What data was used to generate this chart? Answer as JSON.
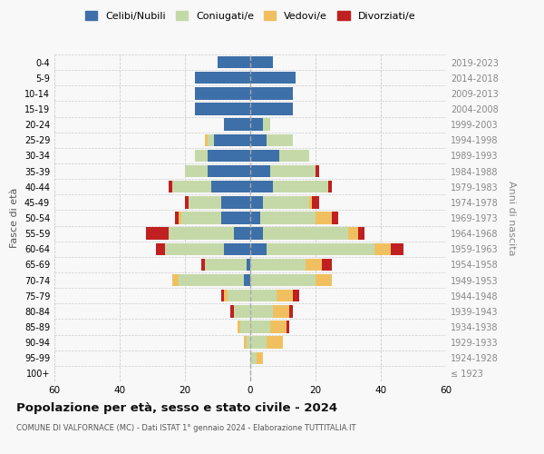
{
  "age_groups": [
    "100+",
    "95-99",
    "90-94",
    "85-89",
    "80-84",
    "75-79",
    "70-74",
    "65-69",
    "60-64",
    "55-59",
    "50-54",
    "45-49",
    "40-44",
    "35-39",
    "30-34",
    "25-29",
    "20-24",
    "15-19",
    "10-14",
    "5-9",
    "0-4"
  ],
  "birth_years": [
    "≤ 1923",
    "1924-1928",
    "1929-1933",
    "1934-1938",
    "1939-1943",
    "1944-1948",
    "1949-1953",
    "1954-1958",
    "1959-1963",
    "1964-1968",
    "1969-1973",
    "1974-1978",
    "1979-1983",
    "1984-1988",
    "1989-1993",
    "1994-1998",
    "1999-2003",
    "2004-2008",
    "2009-2013",
    "2014-2018",
    "2019-2023"
  ],
  "male_celibi": [
    0,
    0,
    0,
    0,
    0,
    0,
    2,
    1,
    8,
    5,
    9,
    9,
    12,
    13,
    13,
    11,
    8,
    17,
    17,
    17,
    10
  ],
  "male_coniugati": [
    0,
    0,
    1,
    3,
    5,
    7,
    20,
    13,
    18,
    20,
    12,
    10,
    12,
    7,
    4,
    2,
    0,
    0,
    0,
    0,
    0
  ],
  "male_vedovi": [
    0,
    0,
    1,
    1,
    0,
    1,
    2,
    0,
    0,
    0,
    1,
    0,
    0,
    0,
    0,
    1,
    0,
    0,
    0,
    0,
    0
  ],
  "male_divorziati": [
    0,
    0,
    0,
    0,
    1,
    1,
    0,
    1,
    3,
    7,
    1,
    1,
    1,
    0,
    0,
    0,
    0,
    0,
    0,
    0,
    0
  ],
  "female_nubili": [
    0,
    0,
    0,
    0,
    0,
    0,
    0,
    0,
    5,
    4,
    3,
    4,
    7,
    6,
    9,
    5,
    4,
    13,
    13,
    14,
    7
  ],
  "female_coniugate": [
    0,
    2,
    5,
    6,
    7,
    8,
    20,
    17,
    33,
    26,
    17,
    14,
    17,
    14,
    9,
    8,
    2,
    0,
    0,
    0,
    0
  ],
  "female_vedove": [
    0,
    2,
    5,
    5,
    5,
    5,
    5,
    5,
    5,
    3,
    5,
    1,
    0,
    0,
    0,
    0,
    0,
    0,
    0,
    0,
    0
  ],
  "female_divorziate": [
    0,
    0,
    0,
    1,
    1,
    2,
    0,
    3,
    4,
    2,
    2,
    2,
    1,
    1,
    0,
    0,
    0,
    0,
    0,
    0,
    0
  ],
  "color_celibi": "#3d6fa8",
  "color_coniugati": "#c5d9a8",
  "color_vedovi": "#f0c060",
  "color_divorziati": "#c02020",
  "title": "Popolazione per età, sesso e stato civile - 2024",
  "subtitle": "COMUNE DI VALFORNACE (MC) - Dati ISTAT 1° gennaio 2024 - Elaborazione TUTTITALIA.IT",
  "ylabel_left": "Fasce di età",
  "ylabel_right": "Anni di nascita",
  "xlim": 60,
  "bg_color": "#f8f8f8",
  "grid_color": "#cccccc"
}
